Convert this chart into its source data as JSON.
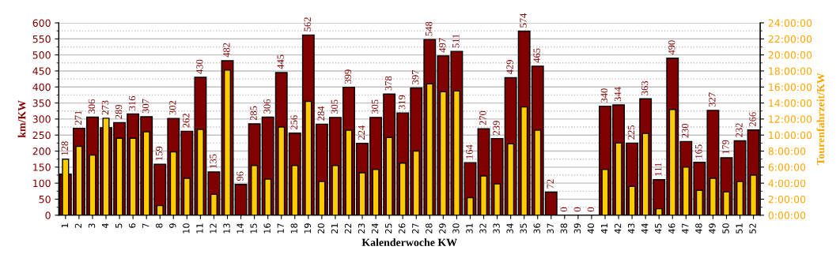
{
  "chart_data": {
    "type": "bar",
    "xlabel": "Kalenderwoche KW",
    "ylabel": "km/KW",
    "y2label": "Tourenfahrzeit/KW",
    "categories": [
      "1",
      "2",
      "3",
      "4",
      "5",
      "6",
      "7",
      "8",
      "9",
      "10",
      "11",
      "12",
      "13",
      "14",
      "15",
      "16",
      "17",
      "18",
      "19",
      "20",
      "21",
      "22",
      "23",
      "24",
      "25",
      "26",
      "27",
      "28",
      "29",
      "30",
      "31",
      "32",
      "33",
      "34",
      "35",
      "36",
      "37",
      "38",
      "39",
      "40",
      "41",
      "42",
      "43",
      "44",
      "45",
      "46",
      "47",
      "48",
      "49",
      "50",
      "51",
      "52"
    ],
    "series": [
      {
        "color": "#800000",
        "values": [
          128,
          271,
          306,
          273,
          289,
          316,
          307,
          159,
          302,
          262,
          430,
          135,
          482,
          96,
          285,
          306,
          445,
          256,
          562,
          284,
          305,
          399,
          224,
          305,
          378,
          319,
          397,
          548,
          497,
          511,
          164,
          270,
          239,
          429,
          574,
          465,
          72,
          0,
          0,
          0,
          340,
          344,
          225,
          363,
          111,
          490,
          230,
          165,
          327,
          179,
          232,
          266
        ],
        "value_labels": [
          "128",
          "271",
          "306",
          "273",
          "289",
          "316",
          "307",
          "159",
          "302",
          "262",
          "430",
          "135",
          "482",
          "96",
          "285",
          "306",
          "445",
          "256",
          "562",
          "284",
          "305",
          "399",
          "224",
          "305",
          "378",
          "319",
          "397",
          "548",
          "497",
          "511",
          "164",
          "270",
          "239",
          "429",
          "574",
          "465",
          "72",
          "0",
          "0",
          "0",
          "340",
          "344",
          "225",
          "363",
          "111",
          "490",
          "230",
          "165",
          "327",
          "179",
          "232",
          "266"
        ]
      },
      {
        "color": "#ffcc00",
        "axis": "y2",
        "values": [
          7.0,
          8.6,
          7.5,
          12.1,
          9.6,
          9.6,
          10.4,
          1.2,
          7.9,
          4.6,
          10.7,
          2.6,
          18.1,
          0,
          6.2,
          4.5,
          11.0,
          6.2,
          14.2,
          4.2,
          6.2,
          10.6,
          5.3,
          5.7,
          9.7,
          6.5,
          8.0,
          16.4,
          15.4,
          15.5,
          2.2,
          4.9,
          3.9,
          8.9,
          13.5,
          10.6,
          0,
          0,
          0,
          0,
          5.7,
          9.0,
          3.6,
          10.2,
          0.8,
          13.2,
          6.0,
          3.1,
          4.6,
          2.9,
          4.2,
          5.0
        ]
      }
    ],
    "ylim": [
      0,
      600
    ],
    "yticks": [
      0,
      50,
      100,
      150,
      200,
      250,
      300,
      350,
      400,
      450,
      500,
      550,
      600
    ],
    "y2lim": [
      0,
      24
    ],
    "y2ticks": [
      {
        "value": 0,
        "label": "0:00:00"
      },
      {
        "value": 2,
        "label": "2:00:00"
      },
      {
        "value": 4,
        "label": "4:00:00"
      },
      {
        "value": 6,
        "label": "6:00:00"
      },
      {
        "value": 8,
        "label": "8:00:00"
      },
      {
        "value": 10,
        "label": "10:00:00"
      },
      {
        "value": 12,
        "label": "12:00:00"
      },
      {
        "value": 14,
        "label": "14:00:00"
      },
      {
        "value": 16,
        "label": "16:00:00"
      },
      {
        "value": 18,
        "label": "18:00:00"
      },
      {
        "value": 20,
        "label": "20:00:00"
      },
      {
        "value": 22,
        "label": "22:00:00"
      },
      {
        "value": 24,
        "label": "24:00:00"
      }
    ],
    "grid": "y",
    "legend": false
  }
}
